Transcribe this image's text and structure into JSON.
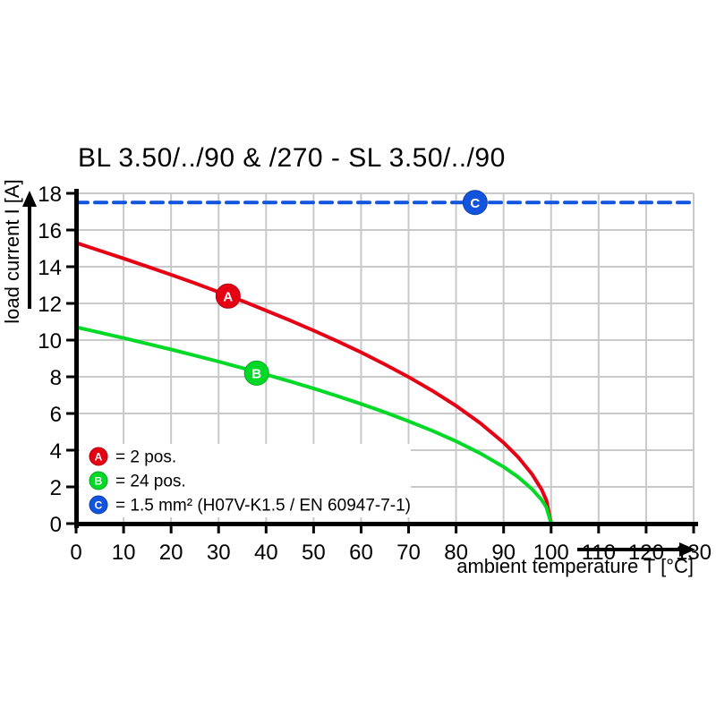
{
  "chart_data": {
    "type": "line",
    "title": "BL 3.50/../90 & /270 - SL 3.50/../90",
    "xlabel": "ambient temperature T [°C]",
    "ylabel": "load current I [A]",
    "xlim": [
      0,
      130
    ],
    "ylim": [
      0,
      18
    ],
    "xticks": [
      0,
      10,
      20,
      30,
      40,
      50,
      60,
      70,
      80,
      90,
      100,
      110,
      120,
      130
    ],
    "yticks": [
      0,
      2,
      4,
      6,
      8,
      10,
      12,
      14,
      16,
      18
    ],
    "grid": true,
    "legend_position": "lower-left",
    "series": [
      {
        "name": "A",
        "label": "= 2 pos.",
        "color": "#e60014",
        "edge_color": "#b3000f",
        "style": "solid",
        "points": [
          [
            0,
            15.3
          ],
          [
            5,
            14.88
          ],
          [
            10,
            14.45
          ],
          [
            15,
            14.01
          ],
          [
            20,
            13.56
          ],
          [
            25,
            13.1
          ],
          [
            30,
            12.62
          ],
          [
            35,
            12.13
          ],
          [
            40,
            11.61
          ],
          [
            45,
            11.08
          ],
          [
            50,
            10.52
          ],
          [
            55,
            9.94
          ],
          [
            60,
            9.33
          ],
          [
            65,
            8.68
          ],
          [
            70,
            7.99
          ],
          [
            75,
            7.24
          ],
          [
            80,
            6.42
          ],
          [
            85,
            5.49
          ],
          [
            90,
            4.41
          ],
          [
            93,
            3.64
          ],
          [
            96,
            2.69
          ],
          [
            98,
            1.85
          ],
          [
            99,
            1.27
          ],
          [
            100,
            0
          ]
        ]
      },
      {
        "name": "B",
        "label": "= 24 pos.",
        "color": "#00d926",
        "edge_color": "#00a81d",
        "style": "solid",
        "points": [
          [
            0,
            10.7
          ],
          [
            5,
            10.41
          ],
          [
            10,
            10.11
          ],
          [
            15,
            9.8
          ],
          [
            20,
            9.49
          ],
          [
            25,
            9.16
          ],
          [
            30,
            8.83
          ],
          [
            35,
            8.48
          ],
          [
            40,
            8.12
          ],
          [
            45,
            7.75
          ],
          [
            50,
            7.36
          ],
          [
            55,
            6.95
          ],
          [
            60,
            6.52
          ],
          [
            65,
            6.07
          ],
          [
            70,
            5.58
          ],
          [
            75,
            5.06
          ],
          [
            80,
            4.49
          ],
          [
            85,
            3.84
          ],
          [
            90,
            3.09
          ],
          [
            93,
            2.55
          ],
          [
            96,
            1.88
          ],
          [
            98,
            1.29
          ],
          [
            99,
            0.89
          ],
          [
            100,
            0
          ]
        ]
      },
      {
        "name": "C",
        "label": "= 1.5 mm² (H07V-K1.5 / EN 60947-7-1)",
        "color": "#1254dd",
        "edge_color": "#0d3fa8",
        "style": "dashed",
        "points": [
          [
            0,
            17.5
          ],
          [
            130,
            17.5
          ]
        ]
      }
    ],
    "markers": [
      {
        "label": "A",
        "x": 32,
        "y": 12.4,
        "series": "A"
      },
      {
        "label": "B",
        "x": 38,
        "y": 8.2,
        "series": "B"
      },
      {
        "label": "C",
        "x": 84,
        "y": 17.5,
        "series": "C"
      }
    ]
  },
  "colors": {
    "background": "#ffffff",
    "grid": "#c9c9c9",
    "axis": "#000000",
    "text": "#000000"
  }
}
